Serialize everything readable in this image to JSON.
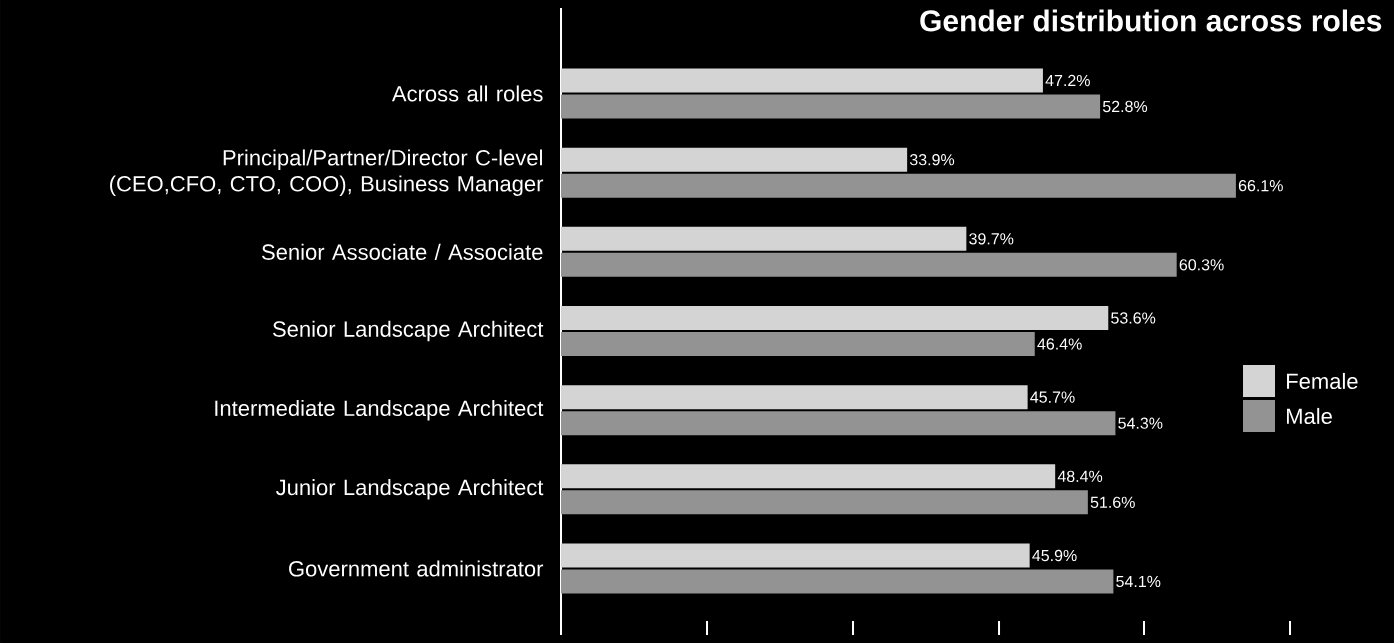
{
  "chart_data": {
    "type": "bar",
    "orientation": "horizontal",
    "title": "Gender distribution across roles",
    "categories": [
      "Across all roles",
      "Principal/Partner/Director C-level (CEO,CFO, CTO, COO), Business Manager",
      "Senior Associate / Associate",
      "Senior Landscape Architect",
      "Intermediate Landscape Architect",
      "Junior Landscape Architect",
      "Government administrator"
    ],
    "series": [
      {
        "name": "Female",
        "color": "#d4d4d4",
        "values": [
          47.2,
          33.9,
          39.7,
          53.6,
          45.7,
          48.4,
          45.9
        ],
        "value_labels": [
          "47.2%",
          "33.9%",
          "39.7%",
          "53.6%",
          "45.7%",
          "48.4%",
          "45.9%"
        ]
      },
      {
        "name": "Male",
        "color": "#939393",
        "values": [
          52.8,
          66.1,
          60.3,
          46.4,
          54.3,
          51.6,
          54.1
        ],
        "value_labels": [
          "52.8%",
          "66.1%",
          "60.3%",
          "46.4%",
          "54.3%",
          "51.6%",
          "54.1%"
        ]
      }
    ],
    "xticks": [
      {
        "value": 0,
        "label": null
      },
      {
        "value": 14.3,
        "label": null
      },
      {
        "value": 28.6,
        "label": null
      },
      {
        "value": 42.9,
        "label": null
      },
      {
        "value": 57.1,
        "label": null
      },
      {
        "value": 71.4,
        "label": null
      }
    ],
    "tick_labels": "y",
    "legend": "right",
    "grid": false
  }
}
